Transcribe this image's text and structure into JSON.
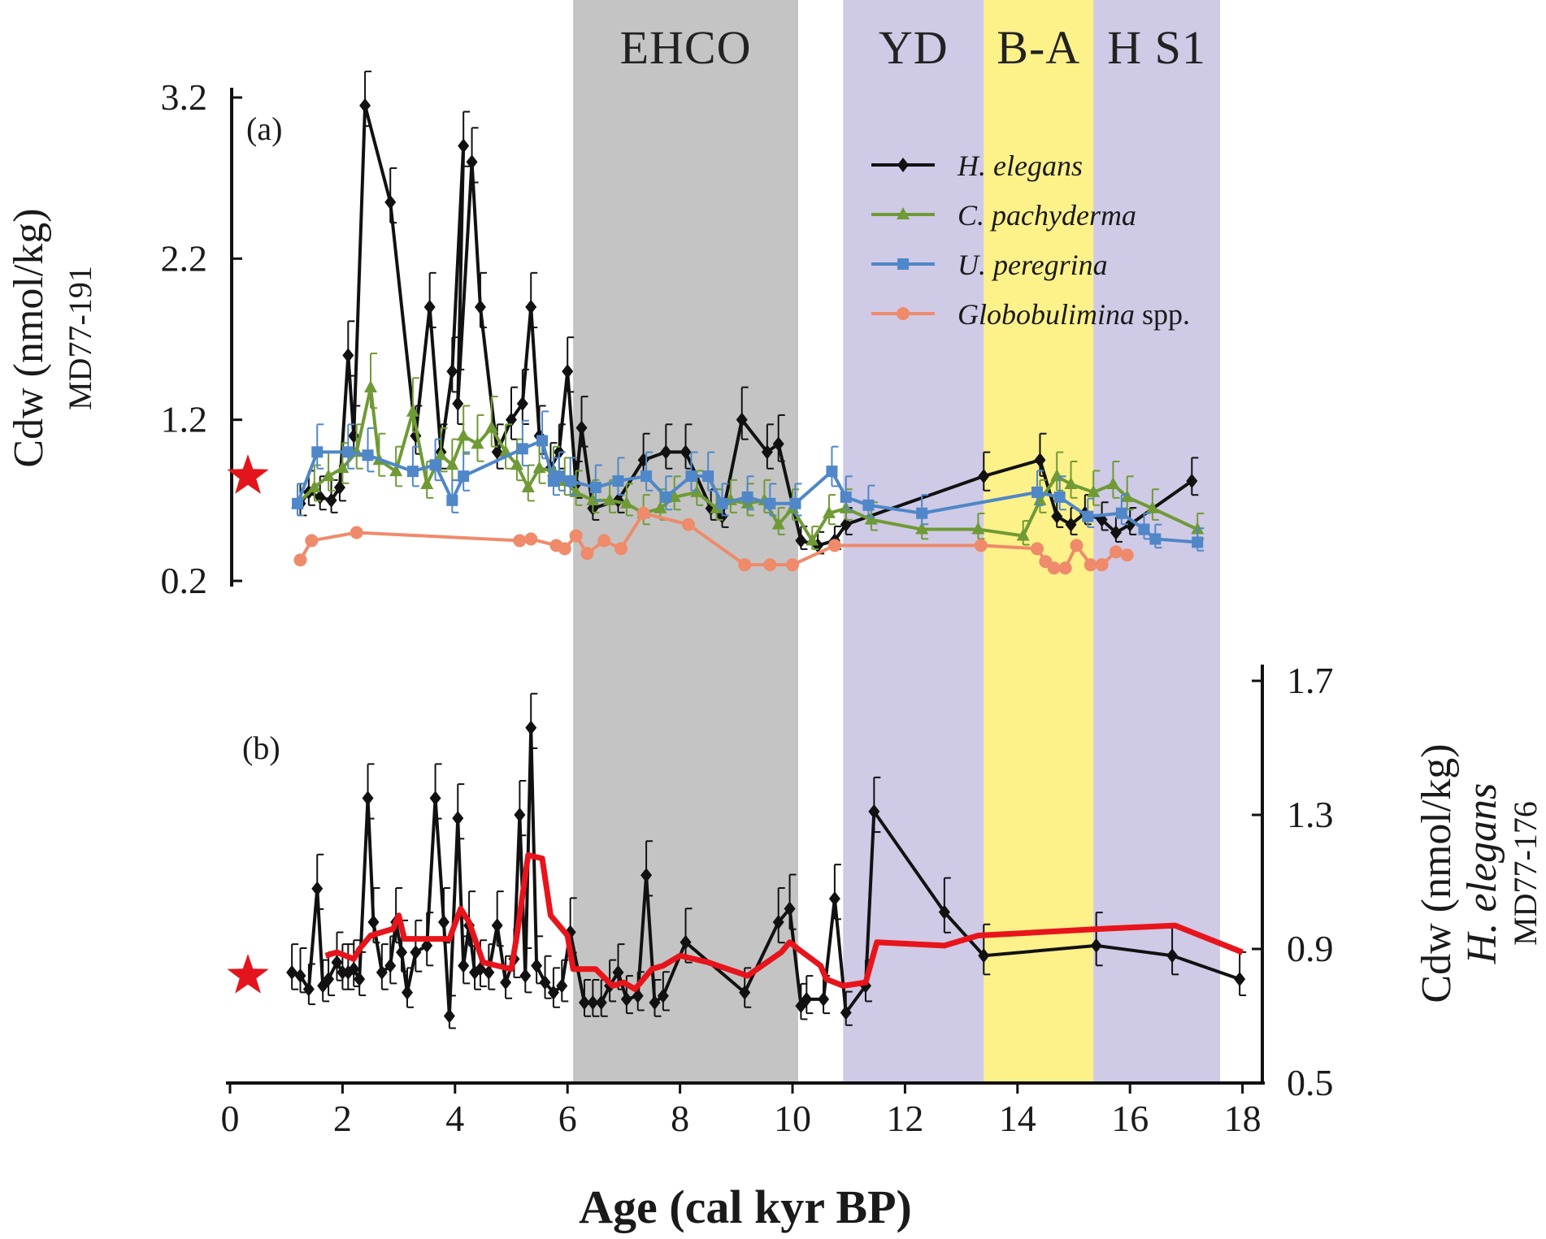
{
  "chart_data": [
    {
      "type": "line",
      "panel_label": "(a)",
      "ylabel": "Cdw (nmol/kg)",
      "ylabel_sub": "MD77-191",
      "ylim": [
        0.2,
        3.2
      ],
      "yticks": [
        "0.2",
        "1.2",
        "2.2",
        "3.2"
      ],
      "yaxis_side": "left",
      "xlim": [
        0,
        18
      ],
      "star_value": 0.85,
      "legend_position": "top-right",
      "series": [
        {
          "name": "H. elegans",
          "color": "#111111",
          "marker": "diamond",
          "error_bars": true,
          "x": [
            1.25,
            1.4,
            1.6,
            1.8,
            1.95,
            2.1,
            2.2,
            2.4,
            2.85,
            3.3,
            3.55,
            3.75,
            3.95,
            4.15,
            4.05,
            4.3,
            4.45,
            4.75,
            5.0,
            5.2,
            5.35,
            5.5,
            5.7,
            5.85,
            6.0,
            6.15,
            6.25,
            6.45,
            6.9,
            7.35,
            7.75,
            8.1,
            8.55,
            8.75,
            9.1,
            9.55,
            9.75,
            10.15,
            10.45,
            10.75,
            10.95,
            13.4,
            14.4,
            14.7,
            14.95,
            15.2,
            15.5,
            15.75,
            16.0,
            17.1
          ],
          "y": [
            0.68,
            0.75,
            0.72,
            0.7,
            0.78,
            1.6,
            1.1,
            3.15,
            2.55,
            1.1,
            1.9,
            1.0,
            1.5,
            2.9,
            1.3,
            2.8,
            1.9,
            1.0,
            1.2,
            1.3,
            1.9,
            1.1,
            0.9,
            1.0,
            1.5,
            0.8,
            1.15,
            0.65,
            0.7,
            0.95,
            1.0,
            1.0,
            0.65,
            0.6,
            1.2,
            1.0,
            1.05,
            0.45,
            0.42,
            0.45,
            0.55,
            0.85,
            0.95,
            0.6,
            0.55,
            0.62,
            0.58,
            0.5,
            0.55,
            0.82
          ]
        },
        {
          "name": "C. pachyderma",
          "color": "#6f9a35",
          "marker": "triangle",
          "error_bars": true,
          "x": [
            1.2,
            1.5,
            1.75,
            2.0,
            2.25,
            2.5,
            2.65,
            2.95,
            3.25,
            3.5,
            3.75,
            3.95,
            4.15,
            4.4,
            4.65,
            4.9,
            5.1,
            5.3,
            5.5,
            5.75,
            5.95,
            6.15,
            6.45,
            6.75,
            7.05,
            7.35,
            7.65,
            7.9,
            8.3,
            8.65,
            8.9,
            9.2,
            9.5,
            9.75,
            10.0,
            10.35,
            10.65,
            10.95,
            11.4,
            12.3,
            13.3,
            14.1,
            14.4,
            14.7,
            14.95,
            15.35,
            15.7,
            15.95,
            16.4,
            17.2
          ],
          "y": [
            0.68,
            0.78,
            0.85,
            0.9,
            1.0,
            1.4,
            0.95,
            0.88,
            1.25,
            0.8,
            0.98,
            0.92,
            1.1,
            1.05,
            1.15,
            1.0,
            0.92,
            0.78,
            0.9,
            0.88,
            0.82,
            0.75,
            0.7,
            0.7,
            0.68,
            0.62,
            0.65,
            0.72,
            0.75,
            0.65,
            0.7,
            0.68,
            0.7,
            0.55,
            0.65,
            0.45,
            0.62,
            0.65,
            0.58,
            0.52,
            0.52,
            0.48,
            0.7,
            0.85,
            0.8,
            0.75,
            0.8,
            0.72,
            0.65,
            0.52
          ]
        },
        {
          "name": "U. peregrina",
          "color": "#4f87c8",
          "marker": "square",
          "error_bars": true,
          "x": [
            1.2,
            1.55,
            2.1,
            2.45,
            3.25,
            3.65,
            3.95,
            4.15,
            5.2,
            5.55,
            5.75,
            5.85,
            6.05,
            6.5,
            6.9,
            7.4,
            7.75,
            8.2,
            8.5,
            8.75,
            9.2,
            9.6,
            10.05,
            10.7,
            10.95,
            11.35,
            12.3,
            14.35,
            14.75,
            15.25,
            15.85,
            16.25,
            16.45,
            17.2
          ],
          "y": [
            0.68,
            1.0,
            1.0,
            0.98,
            0.88,
            0.92,
            0.7,
            0.85,
            1.02,
            1.07,
            0.82,
            0.85,
            0.82,
            0.78,
            0.82,
            0.85,
            0.72,
            0.85,
            0.85,
            0.68,
            0.72,
            0.68,
            0.68,
            0.88,
            0.72,
            0.67,
            0.62,
            0.75,
            0.72,
            0.6,
            0.62,
            0.52,
            0.46,
            0.44
          ]
        },
        {
          "name": "Globobulimina spp.",
          "color": "#ef8a6b",
          "marker": "circle",
          "error_bars": false,
          "x": [
            1.25,
            1.45,
            2.25,
            5.15,
            5.35,
            5.8,
            5.95,
            6.15,
            6.35,
            6.65,
            6.95,
            7.35,
            8.15,
            9.15,
            9.6,
            10.0,
            10.75,
            13.35,
            14.35,
            14.5,
            14.65,
            14.85,
            15.05,
            15.3,
            15.5,
            15.75,
            15.95
          ],
          "y": [
            0.33,
            0.45,
            0.5,
            0.45,
            0.46,
            0.42,
            0.4,
            0.48,
            0.37,
            0.45,
            0.4,
            0.62,
            0.55,
            0.3,
            0.3,
            0.3,
            0.42,
            0.42,
            0.4,
            0.32,
            0.28,
            0.28,
            0.42,
            0.3,
            0.3,
            0.38,
            0.36
          ]
        }
      ]
    },
    {
      "type": "line",
      "panel_label": "(b)",
      "ylabel": "Cdw (nmol/kg)",
      "ylabel_species": "H. elegans",
      "ylabel_sub": "MD77-176",
      "ylim": [
        0.5,
        1.7
      ],
      "yticks": [
        "0.5",
        "0.9",
        "1.3",
        "1.7"
      ],
      "yaxis_side": "right",
      "xlim": [
        0,
        18
      ],
      "xlabel": "Age (cal kyr BP)",
      "xticks": [
        "0",
        "2",
        "4",
        "6",
        "8",
        "10",
        "12",
        "14",
        "16",
        "18"
      ],
      "star_value": 0.82,
      "series": [
        {
          "name": "",
          "color": "#111111",
          "marker": "diamond",
          "error_bars": true,
          "x": [
            1.1,
            1.25,
            1.4,
            1.55,
            1.65,
            1.75,
            1.9,
            2.0,
            2.1,
            2.2,
            2.3,
            2.45,
            2.55,
            2.7,
            2.85,
            2.95,
            3.05,
            3.15,
            3.3,
            3.5,
            3.65,
            3.8,
            3.9,
            4.05,
            4.15,
            4.25,
            4.35,
            4.45,
            4.6,
            4.75,
            4.9,
            5.05,
            5.15,
            5.25,
            5.35,
            5.45,
            5.6,
            5.75,
            5.9,
            6.05,
            6.3,
            6.45,
            6.6,
            6.75,
            6.9,
            7.05,
            7.25,
            7.4,
            7.55,
            7.7,
            8.1,
            9.15,
            9.75,
            9.95,
            10.15,
            10.25,
            10.55,
            10.75,
            10.95,
            11.3,
            11.45,
            12.7,
            13.4,
            15.4,
            16.75,
            17.95
          ],
          "y": [
            0.83,
            0.82,
            0.78,
            1.08,
            0.79,
            0.81,
            0.86,
            0.83,
            0.83,
            0.84,
            0.81,
            1.35,
            0.98,
            0.83,
            0.85,
            0.98,
            0.89,
            0.77,
            0.89,
            0.91,
            1.35,
            0.98,
            0.7,
            1.29,
            0.85,
            0.97,
            0.83,
            0.84,
            0.83,
            0.97,
            0.8,
            0.87,
            1.3,
            0.82,
            1.56,
            0.85,
            0.8,
            0.77,
            0.79,
            0.95,
            0.74,
            0.74,
            0.74,
            0.79,
            0.83,
            0.75,
            0.76,
            1.12,
            0.74,
            0.76,
            0.92,
            0.77,
            0.98,
            1.02,
            0.73,
            0.75,
            0.75,
            1.05,
            0.71,
            0.79,
            1.31,
            1.01,
            0.88,
            0.91,
            0.88,
            0.81
          ]
        },
        {
          "name": "",
          "color": "#e8141b",
          "marker": "none",
          "error_bars": false,
          "x": [
            1.7,
            1.9,
            2.2,
            2.3,
            2.5,
            2.9,
            3.0,
            3.1,
            3.5,
            3.9,
            4.1,
            4.25,
            4.5,
            5.0,
            5.1,
            5.3,
            5.55,
            5.7,
            6.0,
            6.1,
            6.5,
            6.8,
            7.0,
            7.2,
            7.5,
            7.7,
            8.0,
            8.5,
            9.2,
            9.8,
            9.95,
            10.1,
            10.5,
            10.6,
            10.9,
            11.3,
            11.5,
            12.7,
            13.3,
            15.5,
            16.8,
            18.0
          ],
          "y": [
            0.88,
            0.89,
            0.87,
            0.9,
            0.94,
            0.96,
            1.0,
            0.93,
            0.93,
            0.93,
            1.02,
            0.98,
            0.86,
            0.84,
            0.94,
            1.18,
            1.17,
            1.0,
            0.94,
            0.84,
            0.84,
            0.79,
            0.8,
            0.78,
            0.84,
            0.85,
            0.88,
            0.86,
            0.82,
            0.89,
            0.92,
            0.9,
            0.85,
            0.81,
            0.79,
            0.8,
            0.92,
            0.91,
            0.94,
            0.96,
            0.97,
            0.89
          ]
        }
      ]
    }
  ],
  "bands": [
    {
      "label": "EHCO",
      "x0": 6.1,
      "x1": 10.1,
      "color": "#c4c4c4"
    },
    {
      "label": "YD",
      "x0": 10.9,
      "x1": 13.4,
      "color": "#cfcae6"
    },
    {
      "label": "B-A",
      "x0": 13.4,
      "x1": 15.35,
      "color": "#fdf18a"
    },
    {
      "label": "H S1",
      "x0": 15.35,
      "x1": 17.6,
      "color": "#cfcae6"
    }
  ],
  "star_color": "#e4141c"
}
